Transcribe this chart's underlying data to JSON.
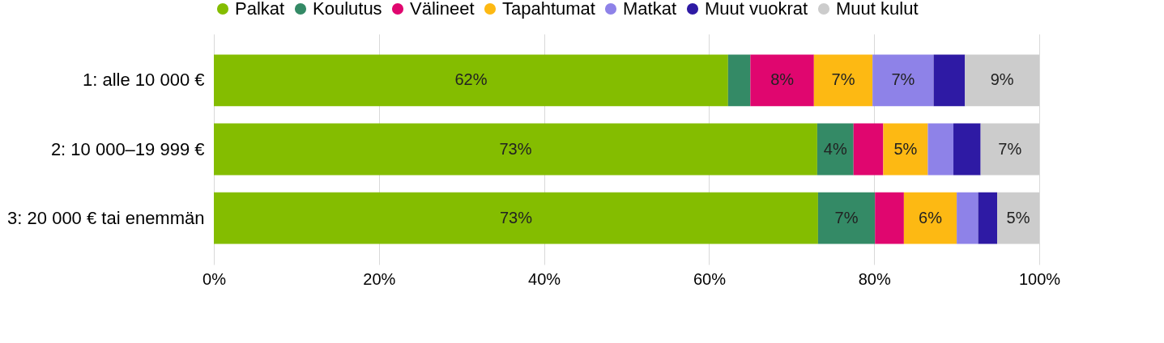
{
  "chart_data": {
    "type": "bar",
    "orientation": "horizontal",
    "stacked": true,
    "categories": [
      "1: alle 10 000 €",
      "2: 10 000–19 999 €",
      "3: 20 000 € tai enemmän"
    ],
    "series": [
      {
        "name": "Palkat",
        "color": "#84bd00",
        "values": [
          62.3,
          73.1,
          73.2
        ],
        "value_labels": [
          "62%",
          "73%",
          "73%"
        ]
      },
      {
        "name": "Koulutus",
        "color": "#348a66",
        "values": [
          2.7,
          4.4,
          6.9
        ],
        "value_labels": [
          null,
          "4%",
          "7%"
        ]
      },
      {
        "name": "Välineet",
        "color": "#e0066f",
        "values": [
          7.7,
          3.6,
          3.5
        ],
        "value_labels": [
          "8%",
          null,
          null
        ]
      },
      {
        "name": "Tapahtumat",
        "color": "#fdb913",
        "values": [
          7.1,
          5.4,
          6.4
        ],
        "value_labels": [
          "7%",
          "5%",
          "6%"
        ]
      },
      {
        "name": "Matkat",
        "color": "#8e82e8",
        "values": [
          7.4,
          3.1,
          2.6
        ],
        "value_labels": [
          "7%",
          null,
          null
        ]
      },
      {
        "name": "Muut vuokrat",
        "color": "#2e1aa4",
        "values": [
          3.8,
          3.3,
          2.3
        ],
        "value_labels": [
          null,
          null,
          null
        ]
      },
      {
        "name": "Muut kulut",
        "color": "#cccccc",
        "values": [
          9.0,
          7.1,
          5.1
        ],
        "value_labels": [
          "9%",
          "7%",
          "5%"
        ]
      }
    ],
    "xlim": [
      0,
      100
    ],
    "xticks": [
      {
        "value": 0,
        "label": "0%"
      },
      {
        "value": 20,
        "label": "20%"
      },
      {
        "value": 40,
        "label": "40%"
      },
      {
        "value": 60,
        "label": "60%"
      },
      {
        "value": 80,
        "label": "80%"
      },
      {
        "value": 100,
        "label": "100%"
      }
    ],
    "grid": "x",
    "legend": "top left"
  }
}
